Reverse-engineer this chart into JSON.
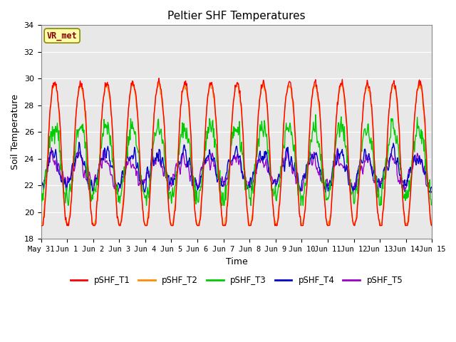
{
  "title": "Peltier SHF Temperatures",
  "xlabel": "Time",
  "ylabel": "Soil Temperature",
  "ylim": [
    18,
    34
  ],
  "yticks": [
    18,
    20,
    22,
    24,
    26,
    28,
    30,
    32,
    34
  ],
  "x_labels": [
    "May 31",
    "Jun 1",
    "Jun 2",
    "Jun 3",
    "Jun 4",
    "Jun 5",
    "Jun 6",
    "Jun 7",
    "Jun 8",
    "Jun 9",
    "Jun 10",
    "Jun 11",
    "Jun 12",
    "Jun 13",
    "Jun 14",
    "Jun 15"
  ],
  "annotation_text": "VR_met",
  "annotation_bbox_facecolor": "#FFFFAA",
  "annotation_bbox_edgecolor": "#8B8B00",
  "annotation_color": "#8B0000",
  "background_color": "#E8E8E8",
  "series_colors": {
    "pSHF_T1": "#FF0000",
    "pSHF_T2": "#FF8C00",
    "pSHF_T3": "#00CC00",
    "pSHF_T4": "#0000CC",
    "pSHF_T5": "#9900CC"
  },
  "line_width": 1.0,
  "n_days": 15,
  "pts_per_day": 48
}
